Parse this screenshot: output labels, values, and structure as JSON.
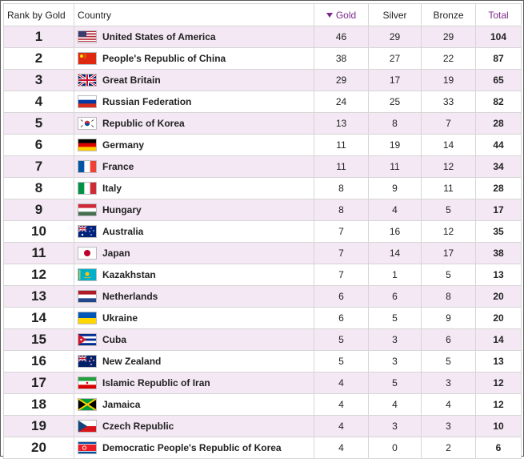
{
  "headers": {
    "rank": "Rank by Gold",
    "country": "Country",
    "gold": "Gold",
    "silver": "Silver",
    "bronze": "Bronze",
    "total": "Total"
  },
  "rows": [
    {
      "rank": "1",
      "country": "United States of America",
      "flag": "usa-flag-icon",
      "gold": "46",
      "silver": "29",
      "bronze": "29",
      "total": "104"
    },
    {
      "rank": "2",
      "country": "People's Republic of China",
      "flag": "china-flag-icon",
      "gold": "38",
      "silver": "27",
      "bronze": "22",
      "total": "87"
    },
    {
      "rank": "3",
      "country": "Great Britain",
      "flag": "great-britain-flag-icon",
      "gold": "29",
      "silver": "17",
      "bronze": "19",
      "total": "65"
    },
    {
      "rank": "4",
      "country": "Russian Federation",
      "flag": "russia-flag-icon",
      "gold": "24",
      "silver": "25",
      "bronze": "33",
      "total": "82"
    },
    {
      "rank": "5",
      "country": "Republic of Korea",
      "flag": "south-korea-flag-icon",
      "gold": "13",
      "silver": "8",
      "bronze": "7",
      "total": "28"
    },
    {
      "rank": "6",
      "country": "Germany",
      "flag": "germany-flag-icon",
      "gold": "11",
      "silver": "19",
      "bronze": "14",
      "total": "44"
    },
    {
      "rank": "7",
      "country": "France",
      "flag": "france-flag-icon",
      "gold": "11",
      "silver": "11",
      "bronze": "12",
      "total": "34"
    },
    {
      "rank": "8",
      "country": "Italy",
      "flag": "italy-flag-icon",
      "gold": "8",
      "silver": "9",
      "bronze": "11",
      "total": "28"
    },
    {
      "rank": "9",
      "country": "Hungary",
      "flag": "hungary-flag-icon",
      "gold": "8",
      "silver": "4",
      "bronze": "5",
      "total": "17"
    },
    {
      "rank": "10",
      "country": "Australia",
      "flag": "australia-flag-icon",
      "gold": "7",
      "silver": "16",
      "bronze": "12",
      "total": "35"
    },
    {
      "rank": "11",
      "country": "Japan",
      "flag": "japan-flag-icon",
      "gold": "7",
      "silver": "14",
      "bronze": "17",
      "total": "38"
    },
    {
      "rank": "12",
      "country": "Kazakhstan",
      "flag": "kazakhstan-flag-icon",
      "gold": "7",
      "silver": "1",
      "bronze": "5",
      "total": "13"
    },
    {
      "rank": "13",
      "country": "Netherlands",
      "flag": "netherlands-flag-icon",
      "gold": "6",
      "silver": "6",
      "bronze": "8",
      "total": "20"
    },
    {
      "rank": "14",
      "country": "Ukraine",
      "flag": "ukraine-flag-icon",
      "gold": "6",
      "silver": "5",
      "bronze": "9",
      "total": "20"
    },
    {
      "rank": "15",
      "country": "Cuba",
      "flag": "cuba-flag-icon",
      "gold": "5",
      "silver": "3",
      "bronze": "6",
      "total": "14"
    },
    {
      "rank": "16",
      "country": "New Zealand",
      "flag": "new-zealand-flag-icon",
      "gold": "5",
      "silver": "3",
      "bronze": "5",
      "total": "13"
    },
    {
      "rank": "17",
      "country": "Islamic Republic of Iran",
      "flag": "iran-flag-icon",
      "gold": "4",
      "silver": "5",
      "bronze": "3",
      "total": "12"
    },
    {
      "rank": "18",
      "country": "Jamaica",
      "flag": "jamaica-flag-icon",
      "gold": "4",
      "silver": "4",
      "bronze": "4",
      "total": "12"
    },
    {
      "rank": "19",
      "country": "Czech Republic",
      "flag": "czech-republic-flag-icon",
      "gold": "4",
      "silver": "3",
      "bronze": "3",
      "total": "10"
    },
    {
      "rank": "20",
      "country": "Democratic People's Republic of Korea",
      "flag": "north-korea-flag-icon",
      "gold": "4",
      "silver": "0",
      "bronze": "2",
      "total": "6"
    }
  ]
}
